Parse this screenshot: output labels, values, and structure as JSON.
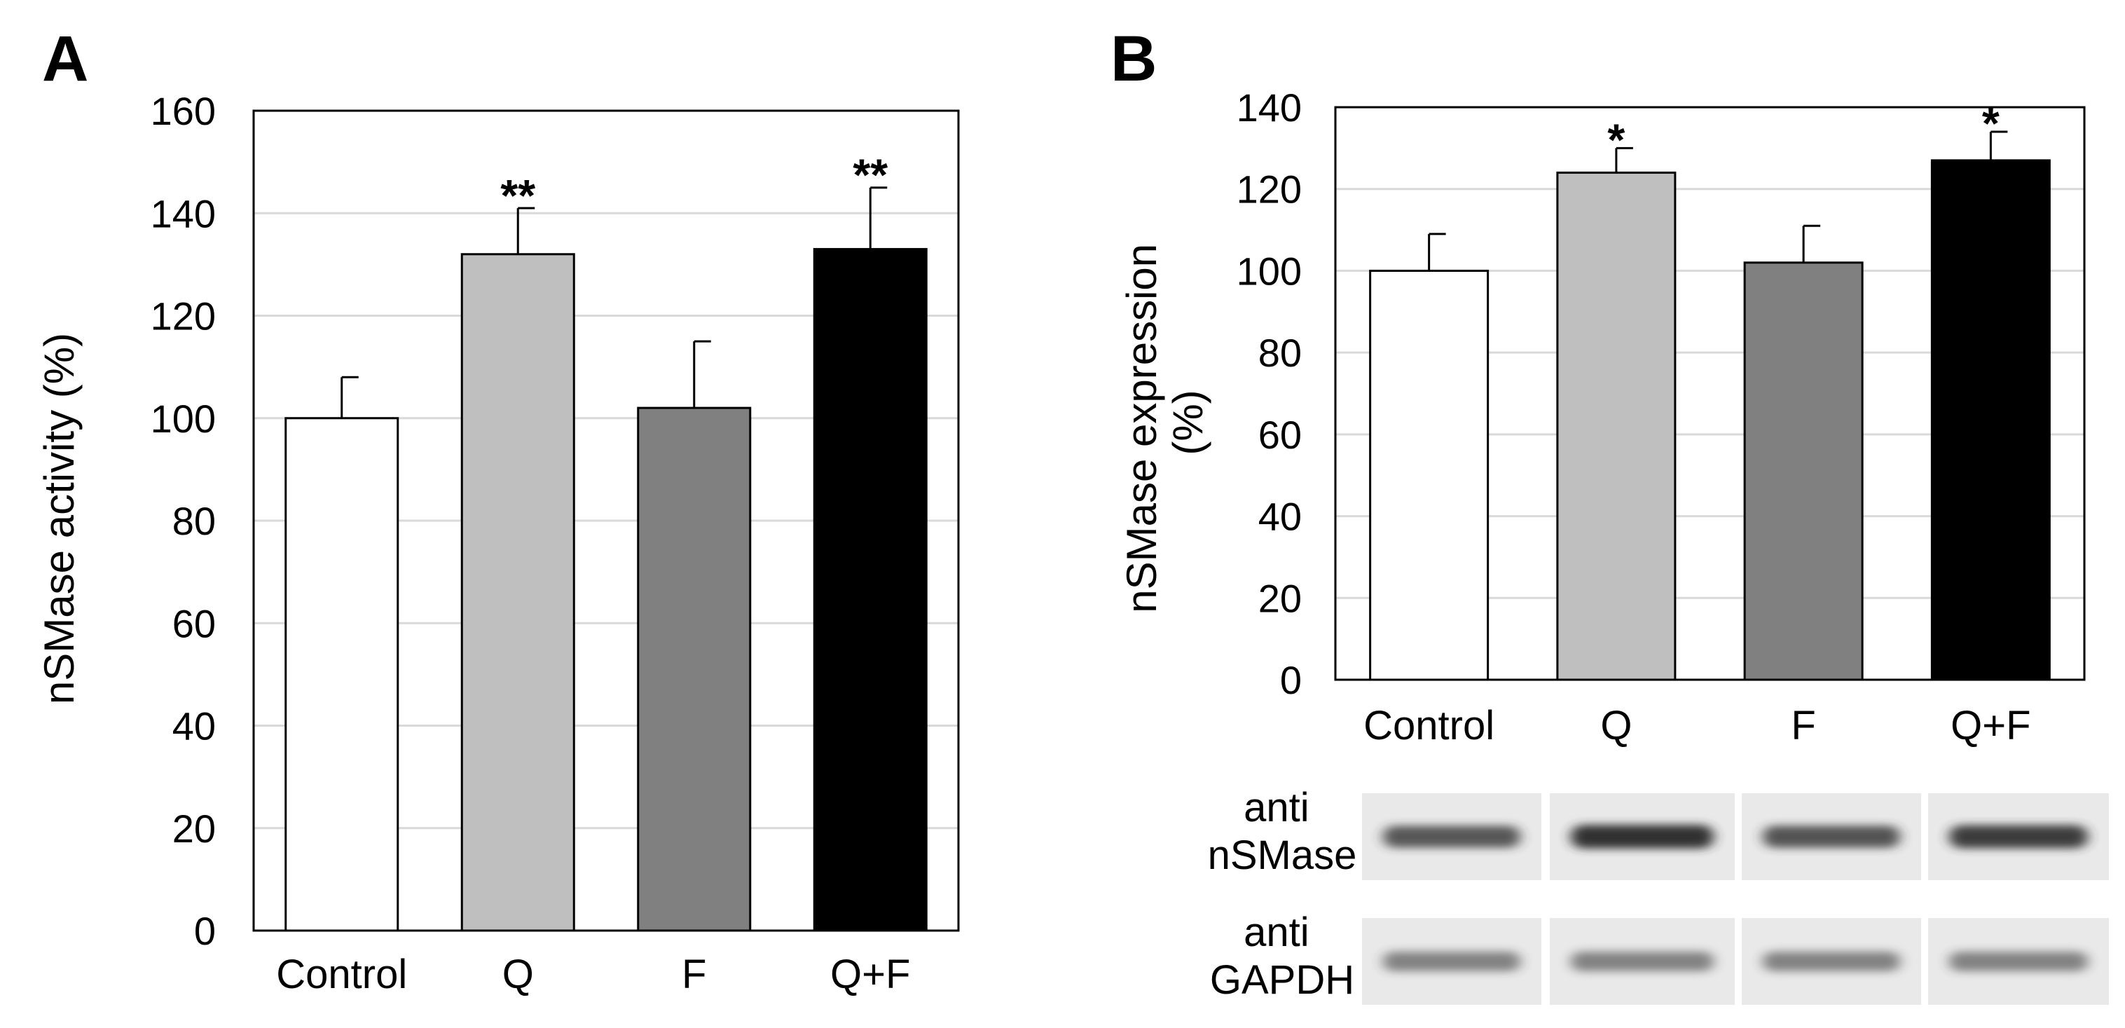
{
  "colors": {
    "Control": "#ffffff",
    "Q": "#bfbfbf",
    "F": "#808080",
    "Q+F": "#000000",
    "axis": "#000000",
    "grid": "#d9d9d9",
    "blot_bg": "#e9e9e9",
    "blot_band": "#2e2e2e"
  },
  "chart_data": [
    {
      "panel": "A",
      "type": "bar",
      "categories": [
        "Control",
        "Q",
        "F",
        "Q+F"
      ],
      "values": [
        100,
        132,
        102,
        133
      ],
      "errors": [
        8,
        9,
        13,
        12
      ],
      "significance": [
        "",
        "**",
        "",
        "**"
      ],
      "ylabel": "nSMase activity (%)",
      "xlabel": "",
      "ylim": [
        0,
        160
      ],
      "yticks": [
        0,
        20,
        40,
        60,
        80,
        100,
        120,
        140,
        160
      ],
      "grid": true,
      "legend": "none"
    },
    {
      "panel": "B",
      "type": "bar",
      "categories": [
        "Control",
        "Q",
        "F",
        "Q+F"
      ],
      "values": [
        100,
        124,
        102,
        127
      ],
      "errors": [
        9,
        6,
        9,
        7
      ],
      "significance": [
        "",
        "*",
        "",
        "*"
      ],
      "ylabel": "nSMase expression (%)",
      "ylabel_lines": [
        "nSMase expression",
        "(%)"
      ],
      "xlabel": "",
      "ylim": [
        0,
        140
      ],
      "yticks": [
        0,
        20,
        40,
        60,
        80,
        100,
        120,
        140
      ],
      "grid": true,
      "legend": "none"
    }
  ],
  "blot": {
    "rows": [
      {
        "label_lines": [
          "anti",
          "nSMase"
        ],
        "band_strength": [
          0.78,
          0.98,
          0.8,
          0.92
        ]
      },
      {
        "label_lines": [
          "anti",
          "GAPDH"
        ],
        "band_strength": [
          0.55,
          0.55,
          0.55,
          0.55
        ]
      }
    ]
  }
}
